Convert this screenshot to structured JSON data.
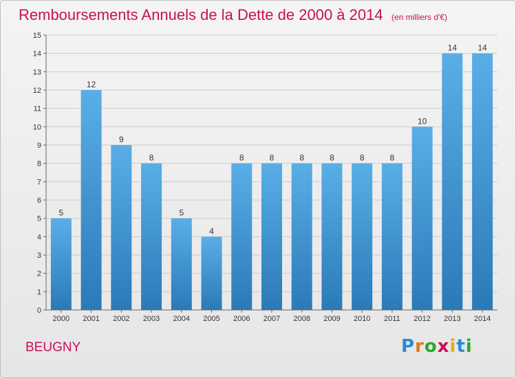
{
  "title": "Remboursements Annuels de la Dette de 2000 à 2014",
  "subtitle": "(en milliers d'€)",
  "location": "BEUGNY",
  "logo_text": "Proxiti",
  "colors": {
    "title": "#c8105a",
    "bar_top": "#5aaee6",
    "bar_bottom": "#2a7ab8",
    "grid": "#cccccc"
  },
  "chart_data": {
    "type": "bar",
    "title": "Remboursements Annuels de la Dette de 2000 à 2014",
    "xlabel": "",
    "ylabel": "",
    "ylim": [
      0,
      15
    ],
    "grid": true,
    "categories": [
      "2000",
      "2001",
      "2002",
      "2003",
      "2004",
      "2005",
      "2006",
      "2007",
      "2008",
      "2009",
      "2010",
      "2011",
      "2012",
      "2013",
      "2014"
    ],
    "values": [
      5,
      12,
      9,
      8,
      5,
      4,
      8,
      8,
      8,
      8,
      8,
      8,
      10,
      14,
      14
    ],
    "data_labels": [
      "5",
      "12",
      "9",
      "8",
      "5",
      "4",
      "8",
      "8",
      "8",
      "8",
      "8",
      "8",
      "10",
      "14",
      "14"
    ],
    "y_ticks": [
      "0",
      "1",
      "2",
      "3",
      "4",
      "5",
      "6",
      "7",
      "8",
      "9",
      "10",
      "11",
      "12",
      "13",
      "14",
      "15"
    ]
  }
}
